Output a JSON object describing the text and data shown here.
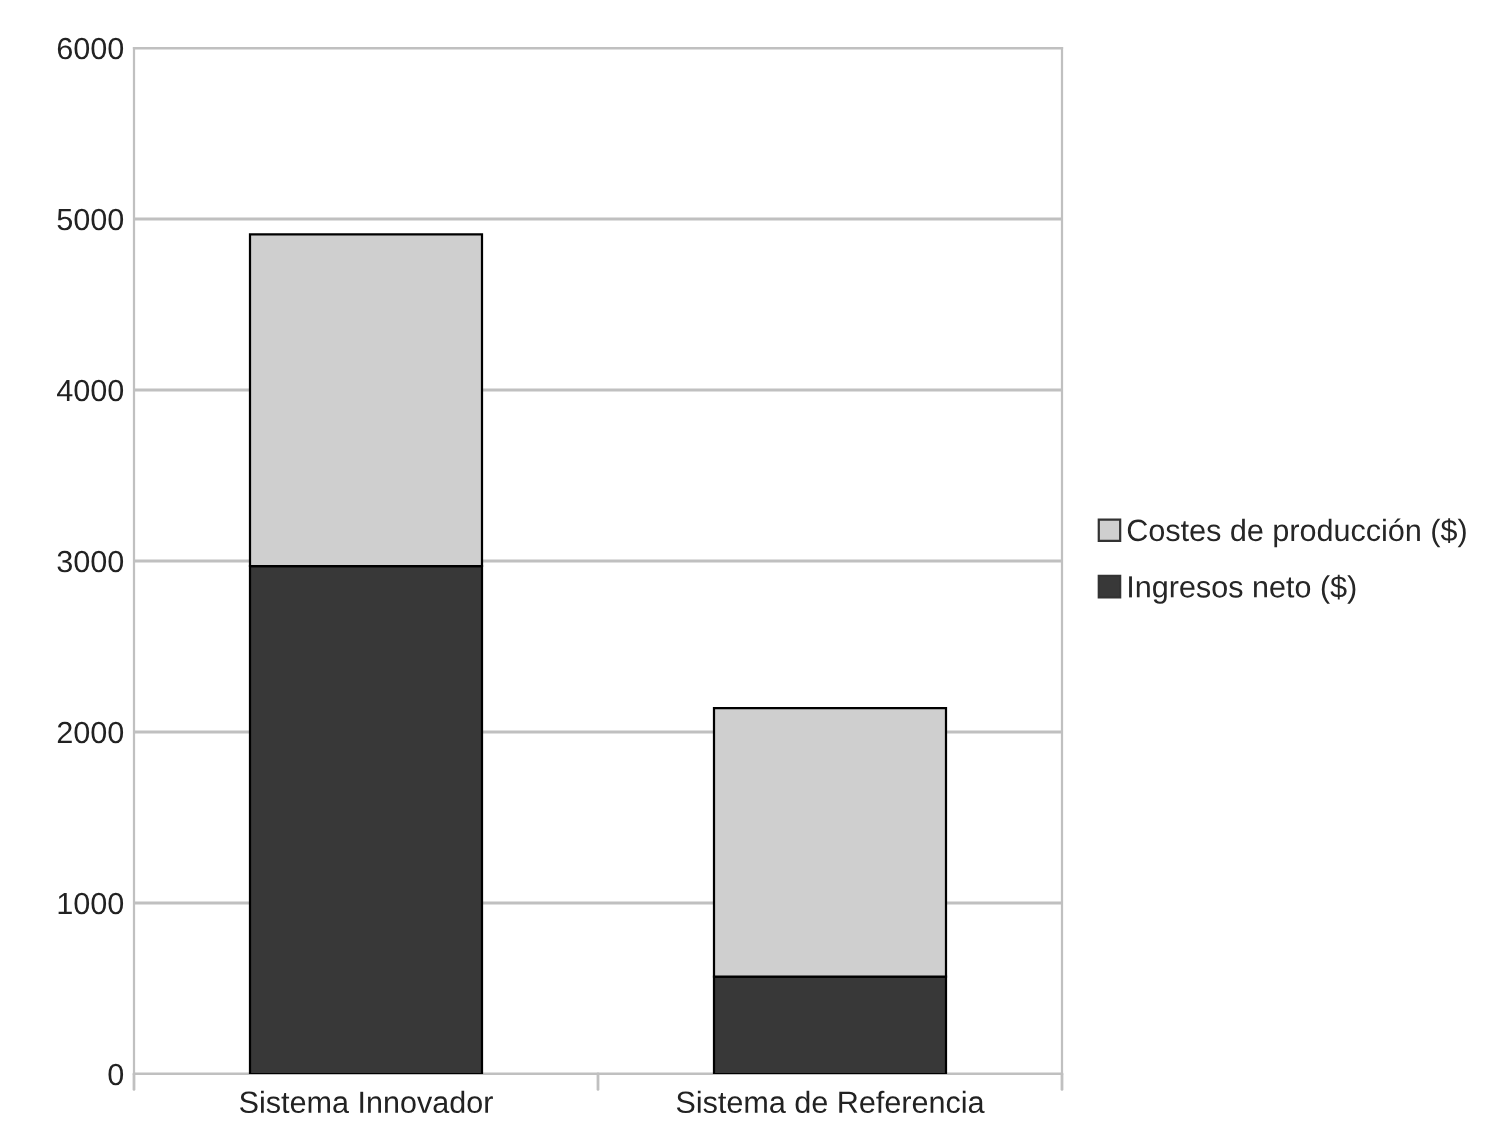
{
  "chart_data": {
    "type": "bar",
    "stacked": true,
    "categories": [
      "Sistema Innovador",
      "Sistema de Referencia"
    ],
    "series": [
      {
        "name": "Ingresos neto ($)",
        "color": "#383838",
        "values": [
          2970,
          570
        ]
      },
      {
        "name": "Costes de producción ($)",
        "color": "#cfcfcf",
        "values": [
          1940,
          1570
        ]
      }
    ],
    "ylim": [
      0,
      6000
    ],
    "yticks": [
      0,
      1000,
      2000,
      3000,
      4000,
      5000,
      6000
    ],
    "grid": "y",
    "legend": "right"
  }
}
